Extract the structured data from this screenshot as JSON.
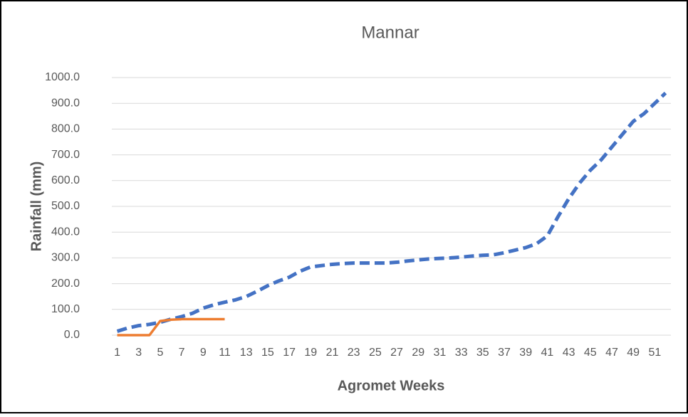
{
  "chart_data": {
    "type": "line",
    "title": "Mannar",
    "x_label": "Agromet Weeks",
    "y_label": "Rainfall (mm)",
    "categories": [
      1,
      null,
      3,
      null,
      5,
      null,
      7,
      null,
      9,
      null,
      11,
      null,
      13,
      null,
      15,
      null,
      17,
      null,
      19,
      null,
      21,
      null,
      23,
      null,
      25,
      null,
      27,
      null,
      29,
      null,
      31,
      null,
      33,
      null,
      35,
      null,
      37,
      null,
      39,
      null,
      41,
      null,
      43,
      null,
      45,
      null,
      47,
      null,
      49,
      null,
      51,
      null
    ],
    "series": [
      {
        "color": "#4472c4",
        "dashed": true,
        "values": [
          15,
          28,
          37,
          42,
          50,
          62,
          72,
          85,
          105,
          118,
          128,
          137,
          150,
          170,
          192,
          210,
          225,
          248,
          265,
          270,
          275,
          278,
          280,
          280,
          280,
          280,
          283,
          288,
          292,
          296,
          298,
          300,
          303,
          307,
          310,
          312,
          320,
          330,
          340,
          355,
          385,
          460,
          530,
          590,
          640,
          680,
          730,
          780,
          830,
          860,
          900,
          940
        ]
      },
      {
        "color": "#ed7d31",
        "dashed": false,
        "values": [
          0,
          0,
          0,
          0,
          55,
          60,
          62,
          62,
          62,
          62,
          62,
          null,
          null,
          null,
          null,
          null,
          null,
          null,
          null,
          null,
          null,
          null,
          null,
          null,
          null,
          null,
          null,
          null,
          null,
          null,
          null,
          null,
          null,
          null,
          null,
          null,
          null,
          null,
          null,
          null,
          null,
          null,
          null,
          null,
          null,
          null,
          null,
          null,
          null,
          null,
          null,
          null
        ]
      }
    ],
    "ylim": [
      0,
      1000
    ],
    "yticks": [
      {
        "value": 0,
        "label": "0.0"
      },
      {
        "value": 100,
        "label": "100.0"
      },
      {
        "value": 200,
        "label": "200.0"
      },
      {
        "value": 300,
        "label": "300.0"
      },
      {
        "value": 400,
        "label": "400.0"
      },
      {
        "value": 500,
        "label": "500.0"
      },
      {
        "value": 600,
        "label": "600.0"
      },
      {
        "value": 700,
        "label": "700.0"
      },
      {
        "value": 800,
        "label": "800.0"
      },
      {
        "value": 900,
        "label": "900.0"
      },
      {
        "value": 1000,
        "label": "1000.0"
      }
    ],
    "grid": true
  }
}
